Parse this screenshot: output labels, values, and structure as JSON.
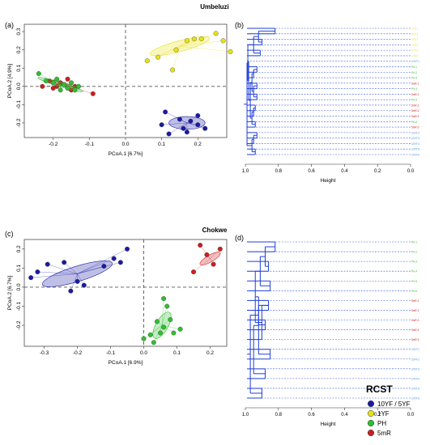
{
  "figure": {
    "top_section_title": "Umbeluzi",
    "bottom_section_title": "Chokwe",
    "panel_labels": {
      "a": "(a)",
      "b": "(b)",
      "c": "(c)",
      "d": "(d)"
    }
  },
  "legend": {
    "title": "RCST",
    "items": [
      {
        "label": "10YF / 5YF",
        "color": "#1a1aa6"
      },
      {
        "label": "1YF",
        "color": "#e9e214"
      },
      {
        "label": "PH",
        "color": "#2fbf2f"
      },
      {
        "label": "5mR",
        "color": "#cc1f1f"
      }
    ]
  },
  "chart_data": [
    {
      "id": "a",
      "type": "scatter",
      "xlabel": "PCoA.1 [6.7%]",
      "ylabel": "PCoA.2 [4.9%]",
      "xlim": [
        -0.28,
        0.28
      ],
      "ylim": [
        -0.28,
        0.34
      ],
      "xticks": [
        -0.2,
        -0.1,
        0.0,
        0.1,
        0.2
      ],
      "xticklabels": [
        "-0.2",
        "-0.1",
        "0.0",
        "0.1",
        "0.2"
      ],
      "yticks": [
        -0.2,
        -0.1,
        0.0,
        0.1,
        0.2,
        0.3
      ],
      "yticklabels": [
        "-0.2",
        "-0.1",
        "0.0",
        "0.1",
        "0.2",
        "0.3"
      ],
      "groups": [
        {
          "color": "#e9e214",
          "ellipse": {
            "cx": 0.15,
            "cy": 0.22,
            "rx": 0.085,
            "ry": 0.03,
            "angle": 15
          },
          "points": [
            [
              0.06,
              0.14
            ],
            [
              0.09,
              0.16
            ],
            [
              0.17,
              0.25
            ],
            [
              0.19,
              0.26
            ],
            [
              0.21,
              0.26
            ],
            [
              0.25,
              0.29
            ],
            [
              0.27,
              0.25
            ],
            [
              0.29,
              0.19
            ],
            [
              0.14,
              0.2
            ],
            [
              0.13,
              0.09
            ]
          ]
        },
        {
          "color": "#1a1aa6",
          "ellipse": {
            "cx": 0.17,
            "cy": -0.2,
            "rx": 0.05,
            "ry": 0.035,
            "angle": 0
          },
          "points": [
            [
              0.11,
              -0.14
            ],
            [
              0.15,
              -0.18
            ],
            [
              0.18,
              -0.19
            ],
            [
              0.2,
              -0.21
            ],
            [
              0.22,
              -0.23
            ],
            [
              0.16,
              -0.23
            ],
            [
              0.1,
              -0.21
            ],
            [
              0.17,
              -0.25
            ],
            [
              0.12,
              -0.26
            ],
            [
              0.2,
              -0.16
            ]
          ]
        },
        {
          "color": "#cc1f1f",
          "ellipse": {
            "cx": -0.17,
            "cy": 0.01,
            "rx": 0.035,
            "ry": 0.01,
            "angle": -20
          },
          "points": [
            [
              -0.21,
              0.03
            ],
            [
              -0.19,
              0.0
            ],
            [
              -0.16,
              0.04
            ],
            [
              -0.15,
              -0.02
            ],
            [
              -0.18,
              0.02
            ],
            [
              -0.09,
              -0.04
            ],
            [
              -0.17,
              0.01
            ],
            [
              -0.14,
              0.0
            ],
            [
              -0.2,
              -0.01
            ],
            [
              -0.23,
              0.0
            ]
          ]
        },
        {
          "color": "#2fbf2f",
          "ellipse": {
            "cx": -0.18,
            "cy": 0.01,
            "rx": 0.065,
            "ry": 0.012,
            "angle": -17
          },
          "points": [
            [
              -0.24,
              0.07
            ],
            [
              -0.22,
              0.03
            ],
            [
              -0.2,
              0.02
            ],
            [
              -0.17,
              0.01
            ],
            [
              -0.16,
              -0.01
            ],
            [
              -0.14,
              -0.02
            ],
            [
              -0.13,
              0.0
            ],
            [
              -0.18,
              -0.02
            ],
            [
              -0.15,
              0.02
            ],
            [
              -0.19,
              0.04
            ]
          ]
        }
      ]
    },
    {
      "id": "b",
      "type": "dendrogram",
      "xlabel": "Height",
      "xlim": [
        1.0,
        0.0
      ],
      "xticks": [
        1.0,
        0.8,
        0.6,
        0.4,
        0.2,
        0.0
      ],
      "xticklabels": [
        "1.0",
        "0.8",
        "0.6",
        "0.4",
        "0.2",
        "0.0"
      ],
      "leaves": [
        {
          "label": "1YF.1",
          "color": "#e9e214"
        },
        {
          "label": "1YF.2",
          "color": "#e9e214"
        },
        {
          "label": "1YF.3",
          "color": "#e9e214"
        },
        {
          "label": "1YF.4",
          "color": "#e9e214"
        },
        {
          "label": "1YF.5",
          "color": "#e9e214"
        },
        {
          "label": "1YF.6",
          "color": "#e9e214"
        },
        {
          "label": "10YF.1",
          "color": "#3d8fe0"
        },
        {
          "label": "PH.1",
          "color": "#2fbf2f"
        },
        {
          "label": "PH.2",
          "color": "#2fbf2f"
        },
        {
          "label": "PH.3",
          "color": "#2fbf2f"
        },
        {
          "label": "5mR.1",
          "color": "#cc1f1f"
        },
        {
          "label": "PH.4",
          "color": "#2fbf2f"
        },
        {
          "label": "5mR.2",
          "color": "#cc1f1f"
        },
        {
          "label": "PH.5",
          "color": "#2fbf2f"
        },
        {
          "label": "5mR.3",
          "color": "#cc1f1f"
        },
        {
          "label": "5mR.4",
          "color": "#cc1f1f"
        },
        {
          "label": "5mR.5",
          "color": "#cc1f1f"
        },
        {
          "label": "PH.6",
          "color": "#2fbf2f"
        },
        {
          "label": "5mR.6",
          "color": "#cc1f1f"
        },
        {
          "label": "10YF.2",
          "color": "#3d8fe0"
        },
        {
          "label": "10YF.3",
          "color": "#3d8fe0"
        },
        {
          "label": "10YF.4",
          "color": "#3d8fe0"
        },
        {
          "label": "10YF.5",
          "color": "#3d8fe0"
        },
        {
          "label": "10YF.6",
          "color": "#3d8fe0"
        }
      ],
      "merges": [
        {
          "a": 0,
          "b": 1,
          "h": 0.82
        },
        {
          "a": 2,
          "b": 3,
          "h": 0.9
        },
        {
          "a": 24,
          "b": 25,
          "h": 0.92
        },
        {
          "a": 4,
          "b": 5,
          "h": 0.91
        },
        {
          "a": 26,
          "b": 27,
          "h": 0.95
        },
        {
          "a": 7,
          "b": 8,
          "h": 0.93
        },
        {
          "a": 29,
          "b": 9,
          "h": 0.95
        },
        {
          "a": 10,
          "b": 11,
          "h": 0.93
        },
        {
          "a": 12,
          "b": 13,
          "h": 0.93
        },
        {
          "a": 31,
          "b": 32,
          "h": 0.95
        },
        {
          "a": 30,
          "b": 33,
          "h": 0.96
        },
        {
          "a": 14,
          "b": 15,
          "h": 0.94
        },
        {
          "a": 35,
          "b": 16,
          "h": 0.95
        },
        {
          "a": 17,
          "b": 18,
          "h": 0.94
        },
        {
          "a": 36,
          "b": 37,
          "h": 0.96
        },
        {
          "a": 34,
          "b": 38,
          "h": 0.97
        },
        {
          "a": 6,
          "b": 39,
          "h": 0.98
        },
        {
          "a": 28,
          "b": 40,
          "h": 0.985
        },
        {
          "a": 19,
          "b": 20,
          "h": 0.93
        },
        {
          "a": 42,
          "b": 21,
          "h": 0.95
        },
        {
          "a": 22,
          "b": 23,
          "h": 0.94
        },
        {
          "a": 43,
          "b": 44,
          "h": 0.96
        },
        {
          "a": 41,
          "b": 45,
          "h": 0.99
        }
      ]
    },
    {
      "id": "c",
      "type": "scatter",
      "xlabel": "PCoA.1 [6.9%]",
      "ylabel": "PCoA.2 [6.7%]",
      "xlim": [
        -0.36,
        0.25
      ],
      "ylim": [
        -0.31,
        0.25
      ],
      "xticks": [
        -0.3,
        -0.2,
        -0.1,
        0.0,
        0.1,
        0.2
      ],
      "xticklabels": [
        "-0.3",
        "-0.2",
        "-0.1",
        "0.0",
        "0.1",
        "0.2"
      ],
      "yticks": [
        -0.2,
        -0.1,
        0.0,
        0.1,
        0.2
      ],
      "yticklabels": [
        "-0.2",
        "-0.1",
        "0.0",
        "0.1",
        "0.2"
      ],
      "groups": [
        {
          "color": "#1a1aa6",
          "ellipse": {
            "cx": -0.2,
            "cy": 0.07,
            "rx": 0.11,
            "ry": 0.04,
            "angle": 17
          },
          "points": [
            [
              -0.34,
              0.05
            ],
            [
              -0.32,
              0.08
            ],
            [
              -0.29,
              0.12
            ],
            [
              -0.24,
              0.13
            ],
            [
              -0.2,
              0.03
            ],
            [
              -0.18,
              0.01
            ],
            [
              -0.22,
              -0.02
            ],
            [
              -0.12,
              0.11
            ],
            [
              -0.09,
              0.15
            ],
            [
              -0.07,
              0.13
            ],
            [
              -0.05,
              0.2
            ]
          ]
        },
        {
          "color": "#cc1f1f",
          "ellipse": {
            "cx": 0.2,
            "cy": 0.15,
            "rx": 0.035,
            "ry": 0.018,
            "angle": 30
          },
          "points": [
            [
              0.17,
              0.22
            ],
            [
              0.19,
              0.17
            ],
            [
              0.21,
              0.12
            ],
            [
              0.23,
              0.2
            ],
            [
              0.15,
              0.08
            ]
          ]
        },
        {
          "color": "#2fbf2f",
          "ellipse": {
            "cx": 0.055,
            "cy": -0.2,
            "rx": 0.045,
            "ry": 0.032,
            "angle": 60
          },
          "points": [
            [
              0.06,
              -0.06
            ],
            [
              0.07,
              -0.1
            ],
            [
              0.04,
              -0.18
            ],
            [
              0.08,
              -0.17
            ],
            [
              0.09,
              -0.24
            ],
            [
              0.11,
              -0.22
            ],
            [
              0.05,
              -0.24
            ],
            [
              0.02,
              -0.25
            ],
            [
              0.0,
              -0.27
            ],
            [
              0.03,
              -0.29
            ],
            [
              0.06,
              -0.21
            ]
          ]
        }
      ]
    },
    {
      "id": "d",
      "type": "dendrogram",
      "xlabel": "Height",
      "xlim": [
        1.0,
        0.0
      ],
      "xticks": [
        1.0,
        0.8,
        0.6,
        0.4,
        0.2,
        0.0
      ],
      "xticklabels": [
        "1.0",
        "0.8",
        "0.6",
        "0.4",
        "0.2",
        "0.0"
      ],
      "leaves": [
        {
          "label": "PH.1",
          "color": "#2fbf2f"
        },
        {
          "label": "PH.2",
          "color": "#2fbf2f"
        },
        {
          "label": "PH.3",
          "color": "#2fbf2f"
        },
        {
          "label": "PH.4",
          "color": "#2fbf2f"
        },
        {
          "label": "PH.5",
          "color": "#2fbf2f"
        },
        {
          "label": "PH.6",
          "color": "#2fbf2f"
        },
        {
          "label": "5mR.1",
          "color": "#cc1f1f"
        },
        {
          "label": "5mR.2",
          "color": "#cc1f1f"
        },
        {
          "label": "5mR.3",
          "color": "#cc1f1f"
        },
        {
          "label": "5mR.4",
          "color": "#cc1f1f"
        },
        {
          "label": "5mR.5",
          "color": "#cc1f1f"
        },
        {
          "label": "10YF.1",
          "color": "#3d8fe0"
        },
        {
          "label": "10YF.2",
          "color": "#3d8fe0"
        },
        {
          "label": "10YF.3",
          "color": "#3d8fe0"
        },
        {
          "label": "10YF.4",
          "color": "#3d8fe0"
        },
        {
          "label": "10YF.5",
          "color": "#3d8fe0"
        },
        {
          "label": "10YF.6",
          "color": "#3d8fe0"
        }
      ],
      "merges": [
        {
          "a": 0,
          "b": 1,
          "h": 0.82
        },
        {
          "a": 2,
          "b": 3,
          "h": 0.86
        },
        {
          "a": 17,
          "b": 18,
          "h": 0.88
        },
        {
          "a": 4,
          "b": 5,
          "h": 0.85
        },
        {
          "a": 19,
          "b": 20,
          "h": 0.91
        },
        {
          "a": 6,
          "b": 7,
          "h": 0.86
        },
        {
          "a": 8,
          "b": 9,
          "h": 0.88
        },
        {
          "a": 22,
          "b": 10,
          "h": 0.9
        },
        {
          "a": 22,
          "b": 23,
          "h": 0.92
        },
        {
          "a": 21,
          "b": 24,
          "h": 0.94
        },
        {
          "a": 11,
          "b": 12,
          "h": 0.85
        },
        {
          "a": 13,
          "b": 14,
          "h": 0.88
        },
        {
          "a": 26,
          "b": 27,
          "h": 0.92
        },
        {
          "a": 15,
          "b": 16,
          "h": 0.9
        },
        {
          "a": 28,
          "b": 29,
          "h": 0.95
        },
        {
          "a": 25,
          "b": 30,
          "h": 0.97
        }
      ]
    }
  ]
}
